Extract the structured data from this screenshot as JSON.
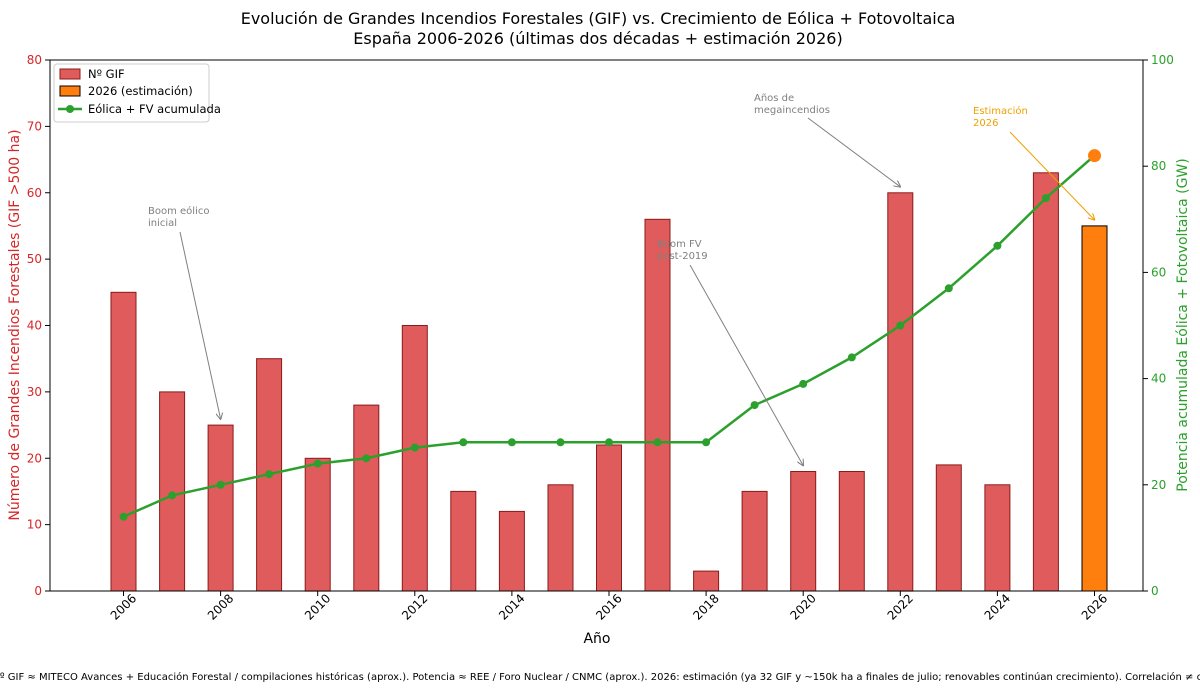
{
  "chart_data": {
    "type": "bar",
    "title": "Evolución de Grandes Incendios Forestales (GIF) vs. Crecimiento de Eólica + Fotovoltaica",
    "subtitle": "España 2006-2026 (últimas dos décadas + estimación 2026)",
    "xlabel": "Año",
    "ylabel_left": "Número de Grandes Incendios Forestales (GIF >500 ha)",
    "ylabel_right": "Potencia acumulada Eólica + Fotovoltaica (GW)",
    "x": [
      2006,
      2007,
      2008,
      2009,
      2010,
      2011,
      2012,
      2013,
      2014,
      2015,
      2016,
      2017,
      2018,
      2019,
      2020,
      2021,
      2022,
      2023,
      2024,
      2025,
      2026
    ],
    "x_ticks": [
      "2006",
      "2008",
      "2010",
      "2012",
      "2014",
      "2016",
      "2018",
      "2020",
      "2022",
      "2024",
      "2026"
    ],
    "ylim_left": [
      0,
      80
    ],
    "yticks_left": [
      "0",
      "10",
      "20",
      "30",
      "40",
      "50",
      "60",
      "70",
      "80"
    ],
    "ylim_right": [
      0,
      100
    ],
    "yticks_right": [
      "0",
      "20",
      "40",
      "60",
      "80",
      "100"
    ],
    "colors": {
      "bars": "#e05c5c",
      "bar_edge": "#8b1a1a",
      "estimate_bar": "#ff7f0e",
      "line": "#2ca02c",
      "left_axis": "#d62728",
      "right_axis": "#2ca02c",
      "annotation": "#808080",
      "estimate_annotation": "#f0a000"
    },
    "series": [
      {
        "name": "Nº GIF",
        "type": "bar",
        "axis": "left",
        "values": [
          45,
          30,
          25,
          35,
          20,
          28,
          40,
          15,
          12,
          16,
          22,
          56,
          3,
          15,
          18,
          18,
          60,
          19,
          16,
          63,
          null
        ]
      },
      {
        "name": "2026 (estimación)",
        "type": "bar",
        "axis": "left",
        "values": [
          null,
          null,
          null,
          null,
          null,
          null,
          null,
          null,
          null,
          null,
          null,
          null,
          null,
          null,
          null,
          null,
          null,
          null,
          null,
          null,
          55
        ]
      },
      {
        "name": "Eólica + FV acumulada",
        "type": "line",
        "axis": "right",
        "values": [
          14,
          18,
          20,
          22,
          24,
          25,
          27,
          28,
          28,
          28,
          28,
          28,
          28,
          35,
          39,
          44,
          50,
          57,
          65,
          74,
          82
        ]
      }
    ],
    "legend": {
      "placement": "top-left",
      "entries": [
        "Nº GIF",
        "2026 (estimación)",
        "Eólica + FV acumulada"
      ]
    },
    "annotations": [
      {
        "lines": [
          "Boom eólico",
          "inicial"
        ],
        "target_x": 2008,
        "target_y_left": 25
      },
      {
        "lines": [
          "Boom FV",
          "post-2019"
        ],
        "target_x": 2020,
        "target_y_left": 18
      },
      {
        "lines": [
          "Años de",
          "megaincendios"
        ],
        "target_x": 2022,
        "target_y_left": 60
      },
      {
        "lines": [
          "Estimación",
          "2026"
        ],
        "target_x": 2026,
        "target_y_left": 55
      }
    ],
    "grid": false
  },
  "footer": "Fuentes: Nº GIF ≈ MITECO Avances + Educación Forestal / compilaciones históricas (aprox.). Potencia ≈ REE / Foro Nuclear / CNMC (aprox.). 2026: estimación (ya 32 GIF y ~150k ha a finales de julio; renovables continúan crecimiento). Correlación ≠ causalidad."
}
